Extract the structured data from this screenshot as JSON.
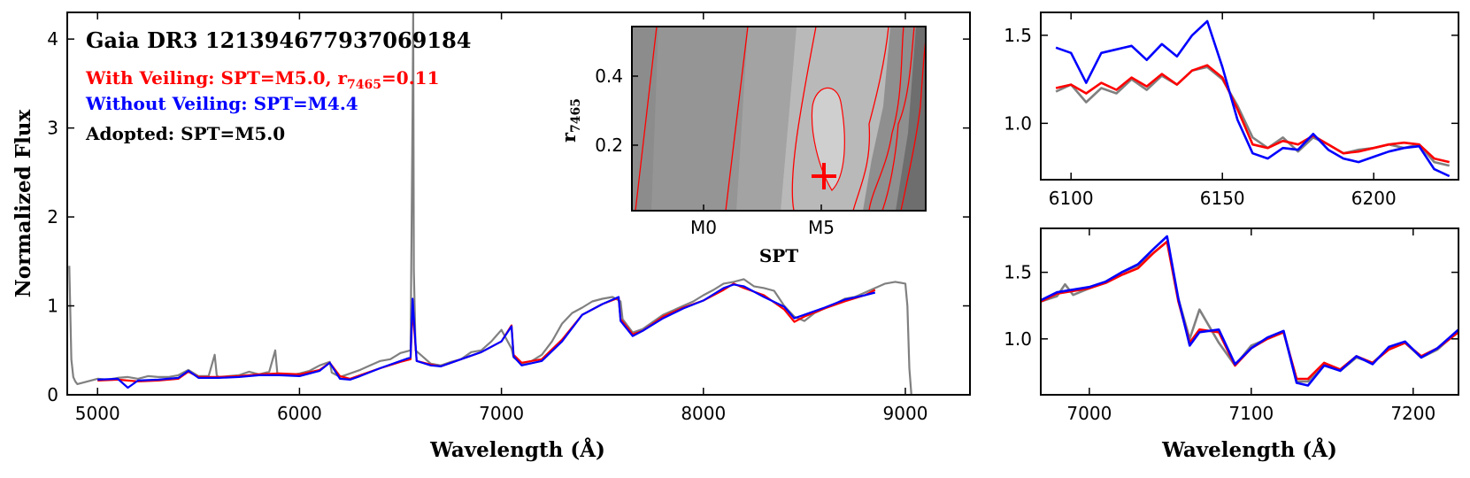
{
  "chart_data": [
    {
      "type": "line",
      "panel": "main",
      "title": "Gaia DR3 121394677937069184",
      "xlabel": "Wavelength (Å)",
      "ylabel": "Normalized Flux",
      "xlim": [
        4850,
        9320
      ],
      "ylim": [
        0,
        4.3
      ],
      "xticks": [
        5000,
        6000,
        7000,
        8000,
        9000
      ],
      "yticks": [
        0,
        1,
        2,
        3,
        4
      ],
      "grid": false,
      "annotations": [
        {
          "text": "With Veiling: SPT=M5.0, r",
          "subscript": "7465",
          "suffix": "=0.11",
          "color": "#ff0000"
        },
        {
          "text": "Without Veiling: SPT=M4.4",
          "subscript": "",
          "suffix": "",
          "color": "#0000ff"
        },
        {
          "text": "Adopted: SPT=M5.0",
          "subscript": "",
          "suffix": "",
          "color": "#000000"
        }
      ],
      "series": [
        {
          "color": "#808080",
          "role": "observed",
          "x": [
            4860,
            4870,
            4880,
            4890,
            4900,
            4950,
            5000,
            5050,
            5100,
            5150,
            5200,
            5250,
            5300,
            5350,
            5400,
            5450,
            5500,
            5550,
            5580,
            5590,
            5600,
            5650,
            5700,
            5750,
            5800,
            5850,
            5880,
            5890,
            5900,
            5950,
            6000,
            6050,
            6100,
            6150,
            6160,
            6200,
            6250,
            6300,
            6350,
            6400,
            6450,
            6500,
            6550,
            6560,
            6563,
            6566,
            6575,
            6600,
            6650,
            6700,
            6750,
            6800,
            6850,
            6900,
            6950,
            7000,
            7050,
            7060,
            7100,
            7150,
            7200,
            7250,
            7300,
            7350,
            7400,
            7450,
            7500,
            7550,
            7590,
            7600,
            7650,
            7700,
            7750,
            7800,
            7850,
            7900,
            7950,
            8000,
            8050,
            8100,
            8150,
            8200,
            8250,
            8300,
            8350,
            8400,
            8450,
            8500,
            8550,
            8600,
            8650,
            8700,
            8750,
            8800,
            8850,
            8900,
            8950,
            9000,
            9010,
            9020,
            9030
          ],
          "y": [
            1.45,
            0.4,
            0.2,
            0.15,
            0.12,
            0.15,
            0.18,
            0.17,
            0.19,
            0.2,
            0.18,
            0.21,
            0.2,
            0.2,
            0.22,
            0.28,
            0.21,
            0.21,
            0.45,
            0.22,
            0.2,
            0.21,
            0.22,
            0.26,
            0.23,
            0.26,
            0.5,
            0.25,
            0.22,
            0.22,
            0.24,
            0.27,
            0.33,
            0.37,
            0.25,
            0.2,
            0.24,
            0.28,
            0.33,
            0.38,
            0.4,
            0.47,
            0.5,
            3.2,
            4.3,
            1.4,
            0.5,
            0.45,
            0.35,
            0.33,
            0.37,
            0.4,
            0.48,
            0.5,
            0.6,
            0.73,
            0.52,
            0.42,
            0.35,
            0.38,
            0.45,
            0.6,
            0.8,
            0.92,
            0.98,
            1.05,
            1.08,
            1.1,
            1.05,
            0.85,
            0.7,
            0.74,
            0.82,
            0.9,
            0.95,
            1.0,
            1.05,
            1.12,
            1.18,
            1.25,
            1.27,
            1.3,
            1.22,
            1.2,
            1.17,
            1.0,
            0.88,
            0.83,
            0.92,
            0.97,
            1.02,
            1.08,
            1.1,
            1.15,
            1.2,
            1.25,
            1.27,
            1.25,
            1.0,
            0.3,
            0.0
          ]
        },
        {
          "color": "#ff0000",
          "role": "model with veiling",
          "x": [
            5000,
            5100,
            5200,
            5300,
            5400,
            5450,
            5500,
            5600,
            5700,
            5800,
            5900,
            6000,
            6100,
            6150,
            6200,
            6250,
            6300,
            6400,
            6500,
            6550,
            6560,
            6580,
            6650,
            6700,
            6800,
            6900,
            7000,
            7050,
            7060,
            7100,
            7200,
            7300,
            7400,
            7500,
            7580,
            7590,
            7650,
            7700,
            7800,
            7900,
            8000,
            8100,
            8150,
            8200,
            8300,
            8400,
            8450,
            8500,
            8600,
            8700,
            8800,
            8850
          ],
          "y": [
            0.16,
            0.17,
            0.15,
            0.16,
            0.18,
            0.26,
            0.2,
            0.2,
            0.21,
            0.23,
            0.24,
            0.23,
            0.28,
            0.36,
            0.21,
            0.18,
            0.22,
            0.3,
            0.37,
            0.4,
            0.98,
            0.38,
            0.34,
            0.32,
            0.4,
            0.48,
            0.6,
            0.78,
            0.45,
            0.36,
            0.4,
            0.62,
            0.9,
            1.02,
            1.09,
            0.85,
            0.68,
            0.72,
            0.88,
            0.98,
            1.06,
            1.18,
            1.25,
            1.2,
            1.12,
            0.96,
            0.82,
            0.88,
            0.97,
            1.05,
            1.12,
            1.18
          ]
        },
        {
          "color": "#0000ff",
          "role": "model without veiling",
          "x": [
            5000,
            5100,
            5150,
            5200,
            5300,
            5400,
            5450,
            5500,
            5600,
            5700,
            5800,
            5900,
            6000,
            6100,
            6150,
            6200,
            6250,
            6300,
            6400,
            6500,
            6550,
            6560,
            6580,
            6650,
            6700,
            6800,
            6900,
            7000,
            7050,
            7060,
            7100,
            7200,
            7300,
            7400,
            7500,
            7580,
            7590,
            7650,
            7700,
            7800,
            7900,
            8000,
            8100,
            8150,
            8200,
            8300,
            8400,
            8450,
            8500,
            8600,
            8700,
            8800,
            8850
          ],
          "y": [
            0.17,
            0.18,
            0.08,
            0.16,
            0.17,
            0.19,
            0.27,
            0.19,
            0.19,
            0.2,
            0.22,
            0.22,
            0.21,
            0.27,
            0.36,
            0.18,
            0.17,
            0.21,
            0.3,
            0.38,
            0.42,
            1.08,
            0.38,
            0.33,
            0.32,
            0.4,
            0.48,
            0.6,
            0.77,
            0.43,
            0.33,
            0.38,
            0.6,
            0.9,
            1.02,
            1.1,
            0.83,
            0.66,
            0.72,
            0.86,
            0.97,
            1.06,
            1.2,
            1.24,
            1.22,
            1.1,
            0.99,
            0.86,
            0.9,
            0.98,
            1.07,
            1.12,
            1.15
          ]
        }
      ]
    },
    {
      "type": "heatmap",
      "panel": "inset",
      "xlabel": "SPT",
      "ylabel": "r",
      "ylabel_sub": "7465",
      "xticks": [
        "M0",
        "M5"
      ],
      "yticks": [
        "0.2",
        "0.4"
      ],
      "marker": {
        "spt": "M5.0",
        "r": 0.11,
        "color": "#ff0000"
      }
    },
    {
      "type": "line",
      "panel": "zoom-top",
      "xlim": [
        6090,
        6228
      ],
      "ylim": [
        0.68,
        1.63
      ],
      "xticks": [
        6100,
        6150,
        6200
      ],
      "yticks": [
        "1.0",
        "1.5"
      ],
      "series": [
        {
          "color": "#808080",
          "x": [
            6095,
            6100,
            6105,
            6110,
            6115,
            6120,
            6125,
            6130,
            6135,
            6140,
            6145,
            6150,
            6155,
            6160,
            6165,
            6170,
            6175,
            6180,
            6185,
            6190,
            6195,
            6200,
            6205,
            6210,
            6215,
            6220,
            6225
          ],
          "y": [
            1.18,
            1.22,
            1.12,
            1.2,
            1.17,
            1.25,
            1.19,
            1.27,
            1.22,
            1.3,
            1.32,
            1.25,
            1.1,
            0.92,
            0.86,
            0.92,
            0.84,
            0.92,
            0.88,
            0.83,
            0.85,
            0.86,
            0.88,
            0.86,
            0.88,
            0.78,
            0.76
          ]
        },
        {
          "color": "#ff0000",
          "x": [
            6095,
            6100,
            6105,
            6110,
            6115,
            6120,
            6125,
            6130,
            6135,
            6140,
            6145,
            6150,
            6155,
            6160,
            6165,
            6170,
            6175,
            6180,
            6185,
            6190,
            6195,
            6200,
            6205,
            6210,
            6215,
            6220,
            6225
          ],
          "y": [
            1.2,
            1.22,
            1.17,
            1.23,
            1.19,
            1.26,
            1.21,
            1.28,
            1.22,
            1.3,
            1.33,
            1.26,
            1.08,
            0.88,
            0.86,
            0.9,
            0.88,
            0.93,
            0.88,
            0.83,
            0.84,
            0.86,
            0.88,
            0.89,
            0.88,
            0.8,
            0.78
          ]
        },
        {
          "color": "#0000ff",
          "x": [
            6095,
            6100,
            6105,
            6110,
            6115,
            6120,
            6125,
            6130,
            6135,
            6140,
            6145,
            6150,
            6155,
            6160,
            6165,
            6170,
            6175,
            6180,
            6185,
            6190,
            6195,
            6200,
            6205,
            6210,
            6215,
            6220,
            6225
          ],
          "y": [
            1.43,
            1.4,
            1.23,
            1.4,
            1.42,
            1.44,
            1.36,
            1.45,
            1.38,
            1.5,
            1.58,
            1.32,
            1.02,
            0.83,
            0.8,
            0.86,
            0.85,
            0.94,
            0.85,
            0.8,
            0.78,
            0.81,
            0.84,
            0.86,
            0.87,
            0.74,
            0.7
          ]
        }
      ]
    },
    {
      "type": "line",
      "panel": "zoom-bottom",
      "xlabel": "Wavelength (Å)",
      "xlim": [
        6970,
        7228
      ],
      "ylim": [
        0.58,
        1.83
      ],
      "xticks": [
        7000,
        7100,
        7200
      ],
      "yticks": [
        "1.0",
        "1.5"
      ],
      "series": [
        {
          "color": "#808080",
          "x": [
            6970,
            6980,
            6985,
            6990,
            7000,
            7010,
            7020,
            7030,
            7040,
            7048,
            7055,
            7062,
            7068,
            7080,
            7090,
            7100,
            7110,
            7120,
            7128,
            7135,
            7145,
            7155,
            7165,
            7175,
            7185,
            7195,
            7205,
            7215,
            7228
          ],
          "y": [
            1.28,
            1.32,
            1.41,
            1.33,
            1.38,
            1.43,
            1.5,
            1.55,
            1.65,
            1.73,
            1.3,
            1.0,
            1.22,
            0.97,
            0.8,
            0.95,
            1.0,
            1.05,
            0.68,
            0.68,
            0.82,
            0.76,
            0.86,
            0.82,
            0.93,
            0.97,
            0.86,
            0.92,
            1.06
          ]
        },
        {
          "color": "#ff0000",
          "x": [
            6970,
            6980,
            6990,
            7000,
            7010,
            7020,
            7030,
            7040,
            7048,
            7055,
            7062,
            7068,
            7080,
            7090,
            7100,
            7110,
            7120,
            7128,
            7135,
            7145,
            7155,
            7165,
            7175,
            7185,
            7195,
            7205,
            7215,
            7228
          ],
          "y": [
            1.28,
            1.34,
            1.36,
            1.38,
            1.42,
            1.48,
            1.53,
            1.65,
            1.73,
            1.28,
            0.97,
            1.07,
            1.05,
            0.8,
            0.93,
            1.0,
            1.05,
            0.7,
            0.7,
            0.82,
            0.77,
            0.87,
            0.82,
            0.92,
            0.97,
            0.87,
            0.93,
            1.05
          ]
        },
        {
          "color": "#0000ff",
          "x": [
            6970,
            6980,
            6990,
            7000,
            7010,
            7020,
            7030,
            7040,
            7048,
            7055,
            7062,
            7068,
            7080,
            7090,
            7100,
            7110,
            7120,
            7128,
            7135,
            7145,
            7155,
            7165,
            7175,
            7185,
            7195,
            7205,
            7215,
            7228
          ],
          "y": [
            1.29,
            1.35,
            1.37,
            1.39,
            1.43,
            1.5,
            1.56,
            1.68,
            1.77,
            1.3,
            0.95,
            1.05,
            1.07,
            0.81,
            0.93,
            1.01,
            1.06,
            0.67,
            0.65,
            0.8,
            0.76,
            0.87,
            0.81,
            0.94,
            0.98,
            0.86,
            0.93,
            1.07
          ]
        }
      ]
    }
  ]
}
